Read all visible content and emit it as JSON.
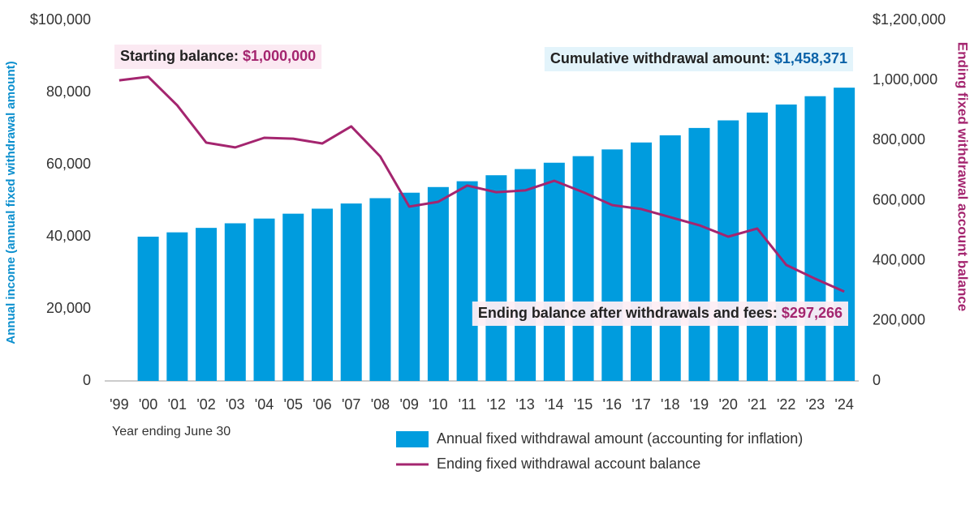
{
  "chart_data": {
    "type": "combo",
    "categories": [
      "'99",
      "'00",
      "'01",
      "'02",
      "'03",
      "'04",
      "'05",
      "'06",
      "'07",
      "'08",
      "'09",
      "'10",
      "'11",
      "'12",
      "'13",
      "'14",
      "'15",
      "'16",
      "'17",
      "'18",
      "'19",
      "'20",
      "'21",
      "'22",
      "'23",
      "'24"
    ],
    "x_label": "Year ending June 30",
    "y_label": "Annual income (annual fixed withdrawal amount)",
    "y2_label": "Ending fixed withdrawal account balance",
    "ylim": [
      0,
      100000
    ],
    "yticks": [
      0,
      {
        "value": 20000,
        "label": "20,000"
      },
      {
        "value": 40000,
        "label": "40,000"
      },
      {
        "value": 60000,
        "label": "60,000"
      },
      {
        "value": 80000,
        "label": "80,000"
      },
      {
        "value": 100000,
        "label": "$100,000"
      }
    ],
    "y2lim": [
      0,
      1200000
    ],
    "y2ticks": [
      0,
      {
        "value": 200000,
        "label": "200,000"
      },
      {
        "value": 400000,
        "label": "400,000"
      },
      {
        "value": 600000,
        "label": "600,000"
      },
      {
        "value": 800000,
        "label": "800,000"
      },
      {
        "value": 1000000,
        "label": "1,000,000"
      },
      {
        "value": 1200000,
        "label": "$1,200,000"
      }
    ],
    "series": [
      {
        "name": "Annual fixed withdrawal amount (accounting for inflation)",
        "type": "bar",
        "color": "#009cde",
        "values": [
          null,
          40000,
          41200,
          42436,
          43709,
          45020,
          46371,
          47762,
          49195,
          50671,
          52191,
          53757,
          55369,
          57030,
          58741,
          60504,
          62319,
          64188,
          66114,
          68097,
          70140,
          72244,
          74412,
          76644,
          78943,
          81312
        ]
      },
      {
        "name": "Ending fixed withdrawal account balance",
        "type": "line",
        "axis": "y2",
        "color": "#a4256f",
        "values": [
          1000000,
          1012000,
          917000,
          793000,
          777000,
          809000,
          806000,
          790000,
          847000,
          747000,
          580000,
          596000,
          650000,
          628000,
          634000,
          666000,
          628000,
          585000,
          572000,
          545000,
          518000,
          480000,
          507000,
          386000,
          340000,
          297266
        ]
      }
    ],
    "annotations": [
      {
        "text": "Starting balance: ",
        "value_text": "$1,000,000"
      },
      {
        "text": "Cumulative withdrawal amount: ",
        "value_text": "$1,458,371"
      },
      {
        "text": "Ending balance after withdrawals and fees: ",
        "value_text": "$297,266"
      }
    ]
  }
}
